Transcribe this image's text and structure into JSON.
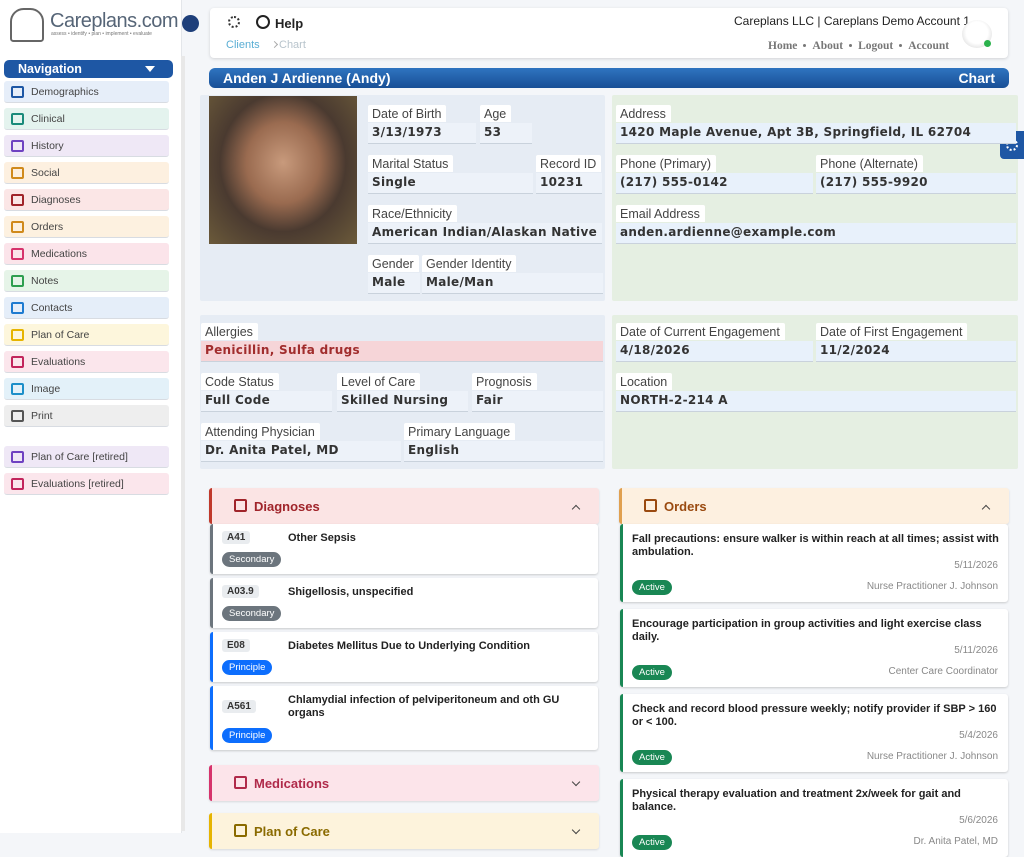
{
  "brand": {
    "name": "Careplans.com",
    "tagline": "assess • identify • plan • implement • evaluate"
  },
  "header": {
    "help": "Help",
    "breadcrumb": [
      "Clients",
      "Chart"
    ],
    "account": "Careplans LLC | Careplans Demo Account 1",
    "links": [
      "Home",
      "About",
      "Logout",
      "Account"
    ]
  },
  "nav": {
    "title": "Navigation",
    "items": [
      {
        "label": "Demographics",
        "color": "#e6eef9",
        "icon": "#1e57a4"
      },
      {
        "label": "Clinical",
        "color": "#e4f3ee",
        "icon": "#1a8a7a"
      },
      {
        "label": "History",
        "color": "#efe8f6",
        "icon": "#6f42c1"
      },
      {
        "label": "Social",
        "color": "#fdf0e0",
        "icon": "#d08a1c"
      },
      {
        "label": "Diagnoses",
        "color": "#fbe6e6",
        "icon": "#a0242a"
      },
      {
        "label": "Orders",
        "color": "#fdf1e0",
        "icon": "#d08a1c"
      },
      {
        "label": "Medications",
        "color": "#fbe4ea",
        "icon": "#d6336c"
      },
      {
        "label": "Notes",
        "color": "#e6f4e8",
        "icon": "#2e9e4f"
      },
      {
        "label": "Contacts",
        "color": "#e5eef9",
        "icon": "#1e7bd0"
      },
      {
        "label": "Plan of Care",
        "color": "#fdf6dc",
        "icon": "#e6b400"
      },
      {
        "label": "Evaluations",
        "color": "#fbe6ec",
        "icon": "#c2255c"
      },
      {
        "label": "Image",
        "color": "#e3f1f9",
        "icon": "#1c8fc9"
      },
      {
        "label": "Print",
        "color": "#eeeeee",
        "icon": "#555555"
      }
    ],
    "retired": [
      {
        "label": "Plan of Care [retired]",
        "color": "#efe8f6",
        "icon": "#6f42c1"
      },
      {
        "label": "Evaluations [retired]",
        "color": "#fbe6ec",
        "icon": "#c2255c"
      }
    ]
  },
  "patient": {
    "name": "Anden J Ardienne (Andy)",
    "view": "Chart"
  },
  "demographics": [
    {
      "label": "Date of Birth",
      "value": "3/13/1973"
    },
    {
      "label": "Age",
      "value": "53"
    },
    {
      "label": "Marital Status",
      "value": "Single"
    },
    {
      "label": "Record ID",
      "value": "10231"
    },
    {
      "label": "Race/Ethnicity",
      "value": "American Indian/Alaskan Native"
    },
    {
      "label": "Gender",
      "value": "Male"
    },
    {
      "label": "Gender Identity",
      "value": "Male/Man"
    }
  ],
  "contact": [
    {
      "label": "Address",
      "value": "1420 Maple Avenue, Apt 3B, Springfield, IL 62704"
    },
    {
      "label": "Phone (Primary)",
      "value": "(217) 555-0142"
    },
    {
      "label": "Phone (Alternate)",
      "value": "(217) 555-9920"
    },
    {
      "label": "Email Address",
      "value": "anden.ardienne@example.com"
    }
  ],
  "clinical": [
    {
      "label": "Allergies",
      "value": "Penicillin, Sulfa drugs"
    },
    {
      "label": "Code Status",
      "value": "Full Code"
    },
    {
      "label": "Level of Care",
      "value": "Skilled Nursing"
    },
    {
      "label": "Prognosis",
      "value": "Fair"
    },
    {
      "label": "Attending Physician",
      "value": "Dr. Anita Patel, MD"
    },
    {
      "label": "Primary Language",
      "value": "English"
    }
  ],
  "engagement": [
    {
      "label": "Date of Current Engagement",
      "value": "4/18/2026"
    },
    {
      "label": "Date of First Engagement",
      "value": "11/2/2024"
    },
    {
      "label": "Location",
      "value": "NORTH-2-214 A"
    }
  ],
  "diagnoses": {
    "title": "Diagnoses",
    "items": [
      {
        "code": "A41",
        "badge": "Secondary",
        "name": "Other Sepsis",
        "color": "#6c757d"
      },
      {
        "code": "A03.9",
        "badge": "Secondary",
        "name": "Shigellosis, unspecified",
        "color": "#6c757d"
      },
      {
        "code": "E08",
        "badge": "Principle",
        "name": "Diabetes Mellitus Due to Underlying Condition",
        "color": "#0d6efd"
      },
      {
        "code": "A561",
        "badge": "Principle",
        "name": "Chlamydial infection of pelviperitoneum and oth GU organs",
        "color": "#0d6efd"
      }
    ]
  },
  "orders": {
    "title": "Orders",
    "items": [
      {
        "text": "Fall precautions: ensure walker is within reach at all times; assist with ambulation.",
        "date": "5/11/2026",
        "status": "Active",
        "author": "Nurse Practitioner J. Johnson"
      },
      {
        "text": "Encourage participation in group activities and light exercise class daily.",
        "date": "5/11/2026",
        "status": "Active",
        "author": "Center Care Coordinator"
      },
      {
        "text": "Check and record blood pressure weekly; notify provider if SBP > 160 or < 100.",
        "date": "5/4/2026",
        "status": "Active",
        "author": "Nurse Practitioner J. Johnson"
      },
      {
        "text": "Physical therapy evaluation and treatment 2x/week for gait and balance.",
        "date": "5/6/2026",
        "status": "Active",
        "author": "Dr. Anita Patel, MD"
      }
    ]
  },
  "medications": {
    "title": "Medications"
  },
  "plan_of_care": {
    "title": "Plan of Care"
  }
}
